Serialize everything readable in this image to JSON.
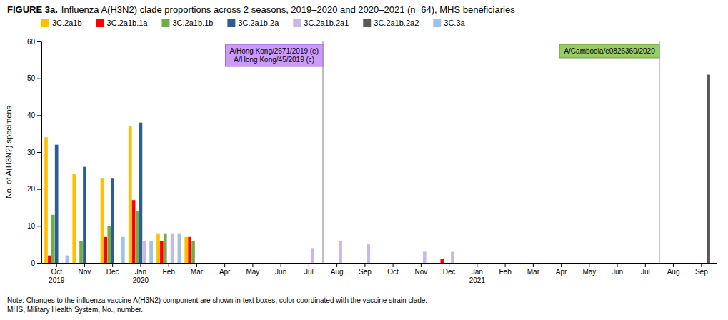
{
  "chart_data": {
    "type": "bar",
    "title": "FIGURE 3a.",
    "subtitle": "Influenza A(H3N2) clade proportions across 2 seasons, 2019–2020 and 2020–2021 (n=64), MHS beneficiaries",
    "y_label": "No. of A(H3N2) specimens",
    "note": "Note: Changes to the influenza vaccine A(H3N2) component are shown in text boxes, color coordinated with the vaccine strain clade.\nMHS, Military Health System, No., number.",
    "categories": [
      "Oct\n2019",
      "Nov",
      "Dec",
      "Jan\n2020",
      "Feb",
      "Mar",
      "Apr",
      "May",
      "Jun",
      "Jul",
      "Aug",
      "Sep",
      "Oct",
      "Nov",
      "Dec",
      "Jan\n2021",
      "Feb",
      "Mar",
      "Apr",
      "May",
      "Jun",
      "Jul",
      "Aug",
      "Sep"
    ],
    "series": [
      {
        "name": "3C.2a1b",
        "color": "#FFC000",
        "values": [
          34,
          24,
          23,
          37,
          8,
          7,
          0,
          0,
          0,
          0,
          0,
          0,
          0,
          0,
          0,
          0,
          0,
          0,
          0,
          0,
          0,
          0,
          0,
          0
        ]
      },
      {
        "name": "3C.2a1b.1a",
        "color": "#FF0000",
        "values": [
          2,
          0,
          7,
          17,
          6,
          7,
          0,
          0,
          0,
          0,
          0,
          0,
          0,
          0,
          1,
          0,
          0,
          0,
          0,
          0,
          0,
          0,
          0,
          0
        ]
      },
      {
        "name": "3C.2a1b.1b",
        "color": "#70AD47",
        "values": [
          13,
          6,
          10,
          14,
          8,
          6,
          0,
          0,
          0,
          0,
          0,
          0,
          0,
          0,
          0,
          0,
          0,
          0,
          0,
          0,
          0,
          0,
          0,
          0
        ]
      },
      {
        "name": "3C.2a1b.2a",
        "color": "#2E5E8E",
        "values": [
          32,
          26,
          23,
          38,
          0,
          0,
          0,
          0,
          0,
          0,
          0,
          0,
          0,
          0,
          0,
          0,
          0,
          0,
          0,
          0,
          0,
          0,
          0,
          0
        ]
      },
      {
        "name": "3C.2a1b.2a1",
        "color": "#C9B7E8",
        "values": [
          0,
          0,
          0,
          6,
          8,
          0,
          0,
          0,
          0,
          4,
          6,
          5,
          0,
          3,
          3,
          0,
          0,
          0,
          0,
          0,
          0,
          0,
          0,
          0
        ]
      },
      {
        "name": "3C.2a1b.2a2",
        "color": "#595959",
        "values": [
          0,
          0,
          0,
          0,
          0,
          0,
          0,
          0,
          0,
          0,
          0,
          0,
          0,
          0,
          0,
          0,
          0,
          0,
          0,
          0,
          0,
          0,
          0,
          51
        ]
      },
      {
        "name": "3C.3a",
        "color": "#9DC3E6",
        "values": [
          2,
          0,
          7,
          6,
          8,
          0,
          0,
          0,
          0,
          0,
          0,
          0,
          0,
          0,
          0,
          0,
          0,
          0,
          0,
          0,
          0,
          0,
          0,
          0
        ]
      }
    ],
    "annotations": [
      {
        "text": "A/Hong Kong/2671/2019 (e)\nA/Hong Kong/45/2019 (c)",
        "color": "#CC99FF",
        "x": 10
      },
      {
        "text": "A/Cambodia/e0826360/2020",
        "color": "#99CC66",
        "x": 22
      }
    ],
    "ylim": [
      0,
      60
    ],
    "yticks": [
      0,
      10,
      20,
      30,
      40,
      50,
      60
    ],
    "grid": false,
    "legend": "top"
  }
}
